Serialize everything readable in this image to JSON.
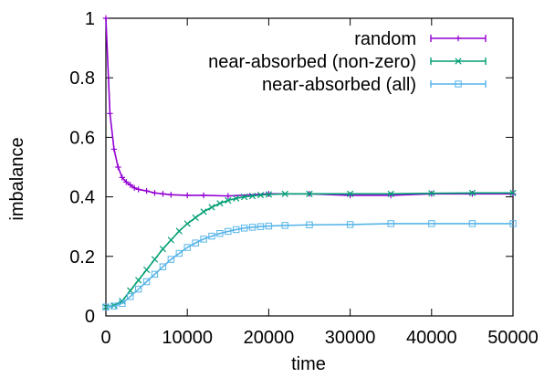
{
  "chart_data": {
    "type": "line",
    "xlabel": "time",
    "ylabel": "imbalance",
    "xlim": [
      0,
      50000
    ],
    "ylim": [
      0,
      1
    ],
    "x_ticks": [
      0,
      10000,
      20000,
      30000,
      40000,
      50000
    ],
    "y_ticks": [
      0,
      0.2,
      0.4,
      0.6,
      0.8,
      1
    ],
    "y_tick_labels": [
      "0",
      "0.2",
      "0.4",
      "0.6",
      "0.8",
      "1"
    ],
    "grid": false,
    "legend_position": "top-right",
    "series": [
      {
        "name": "random",
        "color": "#9400d3",
        "marker": "plus",
        "x": [
          0,
          500,
          1000,
          1500,
          2000,
          2500,
          3000,
          3500,
          4000,
          5000,
          6000,
          7000,
          8000,
          10000,
          12000,
          15000,
          20000,
          25000,
          30000,
          35000,
          40000,
          45000,
          50000
        ],
        "y": [
          1.0,
          0.68,
          0.56,
          0.5,
          0.465,
          0.45,
          0.44,
          0.43,
          0.425,
          0.42,
          0.413,
          0.41,
          0.407,
          0.405,
          0.405,
          0.403,
          0.41,
          0.41,
          0.405,
          0.405,
          0.41,
          0.41,
          0.41
        ]
      },
      {
        "name": "near-absorbed (non-zero)",
        "color": "#009e73",
        "marker": "cross",
        "x": [
          0,
          1000,
          2000,
          3000,
          4000,
          5000,
          6000,
          7000,
          8000,
          9000,
          10000,
          11000,
          12000,
          13000,
          14000,
          15000,
          16000,
          17000,
          18000,
          19000,
          20000,
          22000,
          25000,
          30000,
          35000,
          40000,
          45000,
          50000
        ],
        "y": [
          0.03,
          0.035,
          0.05,
          0.085,
          0.12,
          0.155,
          0.19,
          0.225,
          0.255,
          0.285,
          0.31,
          0.33,
          0.35,
          0.365,
          0.378,
          0.388,
          0.395,
          0.4,
          0.403,
          0.406,
          0.408,
          0.41,
          0.41,
          0.41,
          0.41,
          0.412,
          0.413,
          0.413
        ]
      },
      {
        "name": "near-absorbed (all)",
        "color": "#56b4e9",
        "marker": "box",
        "x": [
          0,
          1000,
          2000,
          3000,
          4000,
          5000,
          6000,
          7000,
          8000,
          9000,
          10000,
          11000,
          12000,
          13000,
          14000,
          15000,
          16000,
          17000,
          18000,
          19000,
          20000,
          22000,
          25000,
          30000,
          35000,
          40000,
          45000,
          50000
        ],
        "y": [
          0.03,
          0.033,
          0.042,
          0.065,
          0.09,
          0.115,
          0.14,
          0.165,
          0.19,
          0.21,
          0.23,
          0.245,
          0.258,
          0.268,
          0.277,
          0.284,
          0.29,
          0.295,
          0.298,
          0.3,
          0.302,
          0.304,
          0.306,
          0.307,
          0.31,
          0.31,
          0.31,
          0.31
        ]
      }
    ]
  }
}
